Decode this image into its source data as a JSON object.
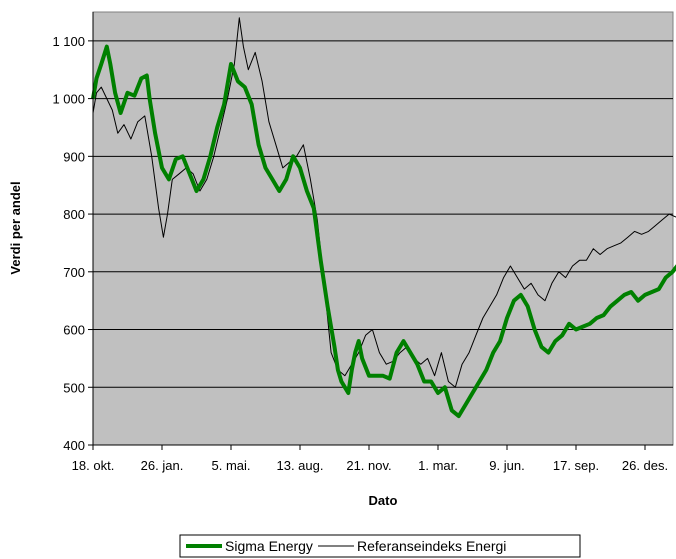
{
  "chart_data": {
    "type": "line",
    "xlabel": "Dato",
    "ylabel": "Verdi per andel",
    "ylim": [
      400,
      1150
    ],
    "yticks": [
      400,
      500,
      600,
      700,
      800,
      900,
      1000,
      1100
    ],
    "ytick_labels": [
      "400",
      "500",
      "600",
      "700",
      "800",
      "900",
      "1 000",
      "1 100"
    ],
    "x_categories": [
      "18. okt.",
      "26. jan.",
      "5. mai.",
      "13. aug.",
      "21. nov.",
      "1. mar.",
      "9. jun.",
      "17. sep.",
      "26. des."
    ],
    "x_range": [
      0,
      8.95
    ],
    "grid": true,
    "plot_background": "#c0c0c0",
    "legend_position": "bottom",
    "series": [
      {
        "name": "Sigma Energy",
        "color": "#008000",
        "x": [
          0,
          0.05,
          0.12,
          0.2,
          0.25,
          0.32,
          0.4,
          0.5,
          0.6,
          0.7,
          0.78,
          0.82,
          0.9,
          1.0,
          1.1,
          1.2,
          1.3,
          1.4,
          1.5,
          1.6,
          1.7,
          1.8,
          1.9,
          2.0,
          2.1,
          2.2,
          2.3,
          2.4,
          2.5,
          2.6,
          2.7,
          2.8,
          2.9,
          3.0,
          3.1,
          3.2,
          3.3,
          3.4,
          3.5,
          3.55,
          3.6,
          3.65,
          3.7,
          3.75,
          3.8,
          3.85,
          3.9,
          4.0,
          4.1,
          4.2,
          4.3,
          4.4,
          4.5,
          4.6,
          4.7,
          4.8,
          4.9,
          5.0,
          5.1,
          5.2,
          5.3,
          5.4,
          5.5,
          5.6,
          5.7,
          5.8,
          5.9,
          6.0,
          6.1,
          6.2,
          6.3,
          6.4,
          6.5,
          6.6,
          6.7,
          6.8,
          6.9,
          7.0,
          7.1,
          7.2,
          7.3,
          7.4,
          7.5,
          7.6,
          7.7,
          7.8,
          7.9,
          8.0,
          8.1,
          8.2,
          8.3,
          8.4,
          8.5,
          8.6,
          8.7,
          8.8,
          8.9,
          8.95
        ],
        "values": [
          1000,
          1035,
          1060,
          1090,
          1060,
          1010,
          975,
          1010,
          1005,
          1035,
          1040,
          1000,
          940,
          880,
          860,
          895,
          900,
          870,
          840,
          860,
          900,
          950,
          990,
          1060,
          1030,
          1020,
          990,
          920,
          880,
          860,
          840,
          860,
          900,
          880,
          840,
          810,
          720,
          640,
          570,
          530,
          510,
          500,
          490,
          530,
          560,
          580,
          550,
          520,
          520,
          520,
          515,
          560,
          580,
          560,
          540,
          510,
          510,
          490,
          500,
          460,
          450,
          470,
          490,
          510,
          530,
          560,
          580,
          620,
          650,
          660,
          640,
          600,
          570,
          560,
          580,
          590,
          610,
          600,
          605,
          610,
          620,
          625,
          640,
          650,
          660,
          665,
          650,
          660,
          665,
          670,
          690,
          700,
          715,
          720,
          705,
          700,
          685,
          680
        ]
      },
      {
        "name": "Referanseindeks Energi",
        "color": "#000000",
        "x": [
          0,
          0.05,
          0.12,
          0.2,
          0.28,
          0.36,
          0.45,
          0.55,
          0.65,
          0.75,
          0.85,
          0.95,
          1.02,
          1.08,
          1.15,
          1.25,
          1.35,
          1.45,
          1.55,
          1.65,
          1.75,
          1.85,
          1.95,
          2.05,
          2.12,
          2.18,
          2.25,
          2.35,
          2.45,
          2.55,
          2.65,
          2.75,
          2.85,
          2.95,
          3.05,
          3.15,
          3.25,
          3.35,
          3.45,
          3.55,
          3.65,
          3.75,
          3.85,
          3.95,
          4.05,
          4.15,
          4.25,
          4.35,
          4.45,
          4.55,
          4.65,
          4.75,
          4.85,
          4.95,
          5.05,
          5.15,
          5.25,
          5.35,
          5.45,
          5.55,
          5.65,
          5.75,
          5.85,
          5.95,
          6.05,
          6.15,
          6.25,
          6.35,
          6.45,
          6.55,
          6.65,
          6.75,
          6.85,
          6.95,
          7.05,
          7.15,
          7.25,
          7.35,
          7.45,
          7.55,
          7.65,
          7.75,
          7.85,
          7.95,
          8.05,
          8.15,
          8.25,
          8.35,
          8.45,
          8.55,
          8.65,
          8.72,
          8.78,
          8.85,
          8.92
        ],
        "values": [
          975,
          1010,
          1020,
          1000,
          980,
          940,
          955,
          930,
          960,
          970,
          900,
          810,
          760,
          800,
          860,
          870,
          880,
          870,
          840,
          860,
          900,
          950,
          1000,
          1060,
          1140,
          1090,
          1050,
          1080,
          1030,
          960,
          920,
          880,
          890,
          900,
          920,
          860,
          790,
          680,
          560,
          530,
          520,
          540,
          560,
          590,
          600,
          560,
          540,
          545,
          560,
          570,
          550,
          540,
          550,
          520,
          560,
          510,
          500,
          540,
          560,
          590,
          620,
          640,
          660,
          690,
          710,
          690,
          670,
          680,
          660,
          650,
          680,
          700,
          690,
          710,
          720,
          720,
          740,
          730,
          740,
          745,
          750,
          760,
          770,
          765,
          770,
          780,
          790,
          800,
          795,
          805,
          790,
          760,
          750,
          745,
          745
        ]
      }
    ]
  }
}
